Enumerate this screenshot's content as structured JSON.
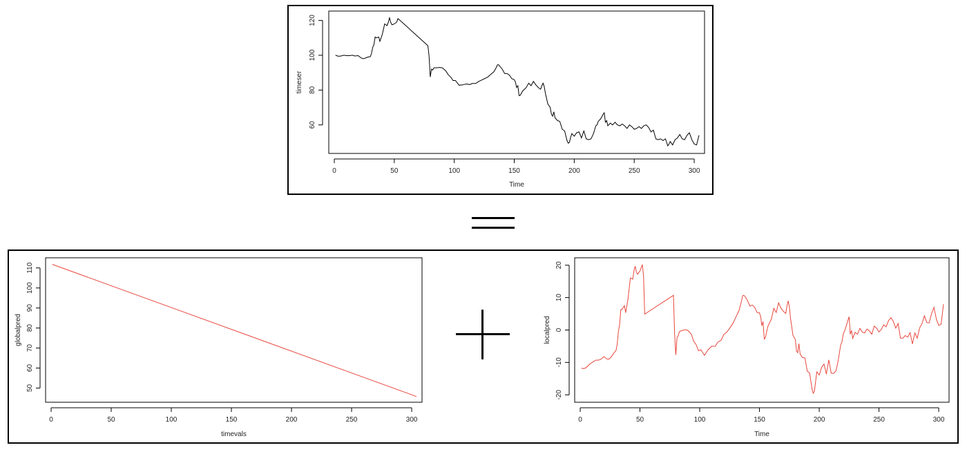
{
  "operators": {
    "equals": "=",
    "plus": "+"
  },
  "chart_data": [
    {
      "type": "line",
      "title": "",
      "xlabel": "Time",
      "ylabel": "timeser",
      "xlim": [
        0,
        304
      ],
      "ylim": [
        46,
        123
      ],
      "xticks": [
        0,
        50,
        100,
        150,
        200,
        250,
        300
      ],
      "yticks": [
        60,
        80,
        100,
        120
      ],
      "series": [
        {
          "color": "#000000",
          "x": [
            1,
            3,
            5,
            8,
            10,
            13,
            15,
            17,
            20,
            22,
            24,
            26,
            28,
            30,
            31,
            32,
            33,
            34,
            35,
            37,
            38,
            40,
            42,
            44,
            45,
            46,
            47,
            48,
            50,
            52,
            53,
            54,
            78,
            79,
            80,
            81,
            82,
            83,
            85,
            88,
            90,
            93,
            95,
            97,
            99,
            101,
            104,
            107,
            110,
            113,
            115,
            118,
            120,
            123,
            125,
            128,
            130,
            133,
            135,
            136,
            137,
            138,
            140,
            142,
            144,
            146,
            148,
            150,
            151,
            152,
            153,
            154,
            155,
            157,
            160,
            162,
            164,
            166,
            168,
            170,
            172,
            173,
            174,
            175,
            176,
            177,
            178,
            180,
            181,
            182,
            183,
            184,
            186,
            188,
            190,
            192,
            194,
            195,
            196,
            197,
            198,
            200,
            202,
            204,
            206,
            208,
            210,
            212,
            214,
            216,
            218,
            219,
            220,
            222,
            224,
            225,
            226,
            227,
            228,
            230,
            232,
            234,
            236,
            238,
            240,
            242,
            244,
            246,
            248,
            250,
            252,
            254,
            256,
            258,
            260,
            262,
            264,
            266,
            268,
            270,
            272,
            274,
            276,
            278,
            279,
            280,
            282,
            284,
            286,
            288,
            290,
            292,
            294,
            296,
            298,
            300,
            302,
            304
          ],
          "y": [
            100,
            99.5,
            99.5,
            100,
            99.8,
            99.8,
            100,
            99.6,
            99.8,
            98.6,
            98,
            98.4,
            99,
            99.2,
            101,
            104.5,
            106,
            110.5,
            110,
            110.5,
            108,
            112,
            118,
            117,
            119,
            121.5,
            119,
            117.5,
            118,
            119,
            121,
            120.5,
            105.5,
            99.6,
            87.5,
            92,
            91.5,
            92.8,
            92.8,
            93,
            92.8,
            91,
            88.8,
            87.5,
            85.5,
            85.5,
            82.8,
            83,
            83.5,
            83.2,
            83.8,
            83.8,
            84.8,
            85.8,
            86.5,
            87.5,
            88.8,
            90.5,
            93,
            94.5,
            94.5,
            93.6,
            92,
            89.5,
            89.5,
            88.5,
            86.5,
            86,
            84.5,
            81.5,
            82.5,
            76.8,
            77,
            79.5,
            81.5,
            84,
            82.5,
            85,
            83,
            81.5,
            80.5,
            82.5,
            84,
            82,
            78,
            75,
            72,
            70,
            66,
            65,
            67.5,
            64,
            62.5,
            62,
            57.5,
            56.5,
            51,
            49.5,
            50,
            53,
            55,
            53.5,
            55.5,
            56,
            52.5,
            56.5,
            52,
            51.5,
            52,
            55,
            59.5,
            60,
            62,
            63.5,
            66,
            67,
            61.5,
            62.5,
            59.5,
            61,
            60,
            61.5,
            60,
            59.5,
            60.5,
            59.5,
            58,
            60,
            59,
            57.5,
            58,
            59,
            58,
            59.5,
            60,
            58.5,
            56,
            57,
            52,
            51.5,
            52,
            51,
            52,
            48,
            49,
            50.5,
            48.5,
            51.5,
            52.5,
            54.5,
            52,
            51.5,
            54,
            55.5,
            51.5,
            49,
            48.5,
            54
          ]
        }
      ]
    },
    {
      "type": "line",
      "title": "",
      "xlabel": "timevals",
      "ylabel": "globalpred",
      "xlim": [
        0,
        304
      ],
      "ylim": [
        45,
        113
      ],
      "xticks": [
        0,
        50,
        100,
        150,
        200,
        250,
        300
      ],
      "yticks": [
        50,
        60,
        70,
        80,
        90,
        100,
        110
      ],
      "series": [
        {
          "color": "#e8463c",
          "x": [
            1,
            304
          ],
          "y": [
            111.8,
            45.8
          ]
        }
      ]
    },
    {
      "type": "line",
      "title": "",
      "xlabel": "Time",
      "ylabel": "localpred",
      "xlim": [
        0,
        304
      ],
      "ylim": [
        -21,
        21
      ],
      "xticks": [
        0,
        50,
        100,
        150,
        200,
        250,
        300
      ],
      "yticks": [
        -20,
        -10,
        0,
        10,
        20
      ],
      "series": [
        {
          "color": "#e8463c",
          "x": [
            1,
            3,
            5,
            8,
            10,
            13,
            15,
            17,
            20,
            22,
            24,
            26,
            28,
            30,
            31,
            32,
            33,
            34,
            35,
            37,
            38,
            40,
            42,
            44,
            45,
            46,
            47,
            48,
            50,
            52,
            53,
            54,
            78,
            79,
            80,
            81,
            82,
            83,
            85,
            88,
            90,
            93,
            95,
            97,
            99,
            101,
            104,
            107,
            110,
            113,
            115,
            118,
            120,
            123,
            125,
            128,
            130,
            133,
            135,
            136,
            137,
            138,
            140,
            142,
            144,
            146,
            148,
            150,
            151,
            152,
            153,
            154,
            155,
            157,
            160,
            162,
            164,
            166,
            168,
            170,
            172,
            173,
            174,
            175,
            176,
            177,
            178,
            180,
            181,
            182,
            183,
            184,
            186,
            188,
            190,
            192,
            194,
            195,
            196,
            197,
            198,
            200,
            202,
            204,
            206,
            208,
            210,
            212,
            214,
            216,
            218,
            219,
            220,
            222,
            224,
            225,
            226,
            227,
            228,
            230,
            232,
            234,
            236,
            238,
            240,
            242,
            244,
            246,
            248,
            250,
            252,
            254,
            256,
            258,
            260,
            262,
            264,
            266,
            268,
            270,
            272,
            274,
            276,
            278,
            279,
            280,
            282,
            284,
            286,
            288,
            290,
            292,
            294,
            296,
            298,
            300,
            302,
            304
          ],
          "y": [
            -11.8,
            -11.9,
            -11.6,
            -10.5,
            -10,
            -9.3,
            -9.3,
            -9.1,
            -8.2,
            -8.9,
            -9,
            -8.3,
            -7.2,
            -6.3,
            -4.3,
            -0.3,
            1.7,
            6.3,
            6.4,
            7.5,
            5.3,
            9.6,
            16.1,
            15.7,
            18.4,
            19.7,
            17.9,
            17.2,
            18.2,
            20.2,
            16.7,
            4.9,
            10.7,
            -1.2,
            -7.7,
            -2.3,
            -1.8,
            -0.5,
            -0.2,
            0.1,
            -0.1,
            -1.3,
            -3.5,
            -4.5,
            -6.4,
            -6.1,
            -7.8,
            -6.1,
            -5,
            -5,
            -3.8,
            -3.1,
            -1.5,
            -0.5,
            0.5,
            2.2,
            3.8,
            6.1,
            9,
            10.6,
            10.7,
            10.3,
            9.1,
            7.4,
            7.7,
            7,
            5.4,
            5.3,
            4.1,
            1.3,
            2.6,
            -2.8,
            -2.3,
            1.1,
            3.4,
            6.7,
            5.4,
            8.4,
            6.7,
            5.8,
            5.1,
            7.3,
            9,
            7.2,
            3.6,
            1,
            -1.6,
            -2.9,
            -6.5,
            -7,
            -4.2,
            -7.4,
            -8.5,
            -8.6,
            -12.7,
            -13.3,
            -18.3,
            -19.5,
            -18.8,
            -15.8,
            -12.9,
            -13.9,
            -11.5,
            -10.5,
            -13.6,
            -9.2,
            -13.3,
            -13.4,
            -12.6,
            -9.2,
            -4.5,
            -3.8,
            -1.4,
            0.5,
            3,
            4.1,
            -1.3,
            -0.1,
            -2.6,
            -0.7,
            -1.3,
            0.5,
            -0.6,
            -0.9,
            0.3,
            -0.3,
            -1.3,
            1.2,
            0.6,
            -0.6,
            0.2,
            1.6,
            1,
            2.9,
            3.8,
            2.7,
            0.6,
            2,
            -2.5,
            -2.5,
            -1.7,
            -2.2,
            -0.8,
            -4.3,
            -2.7,
            -0.9,
            -2.5,
            0.6,
            2,
            4.4,
            2.3,
            2.2,
            5.1,
            7,
            3.4,
            1.4,
            1.8,
            8
          ]
        }
      ]
    }
  ]
}
